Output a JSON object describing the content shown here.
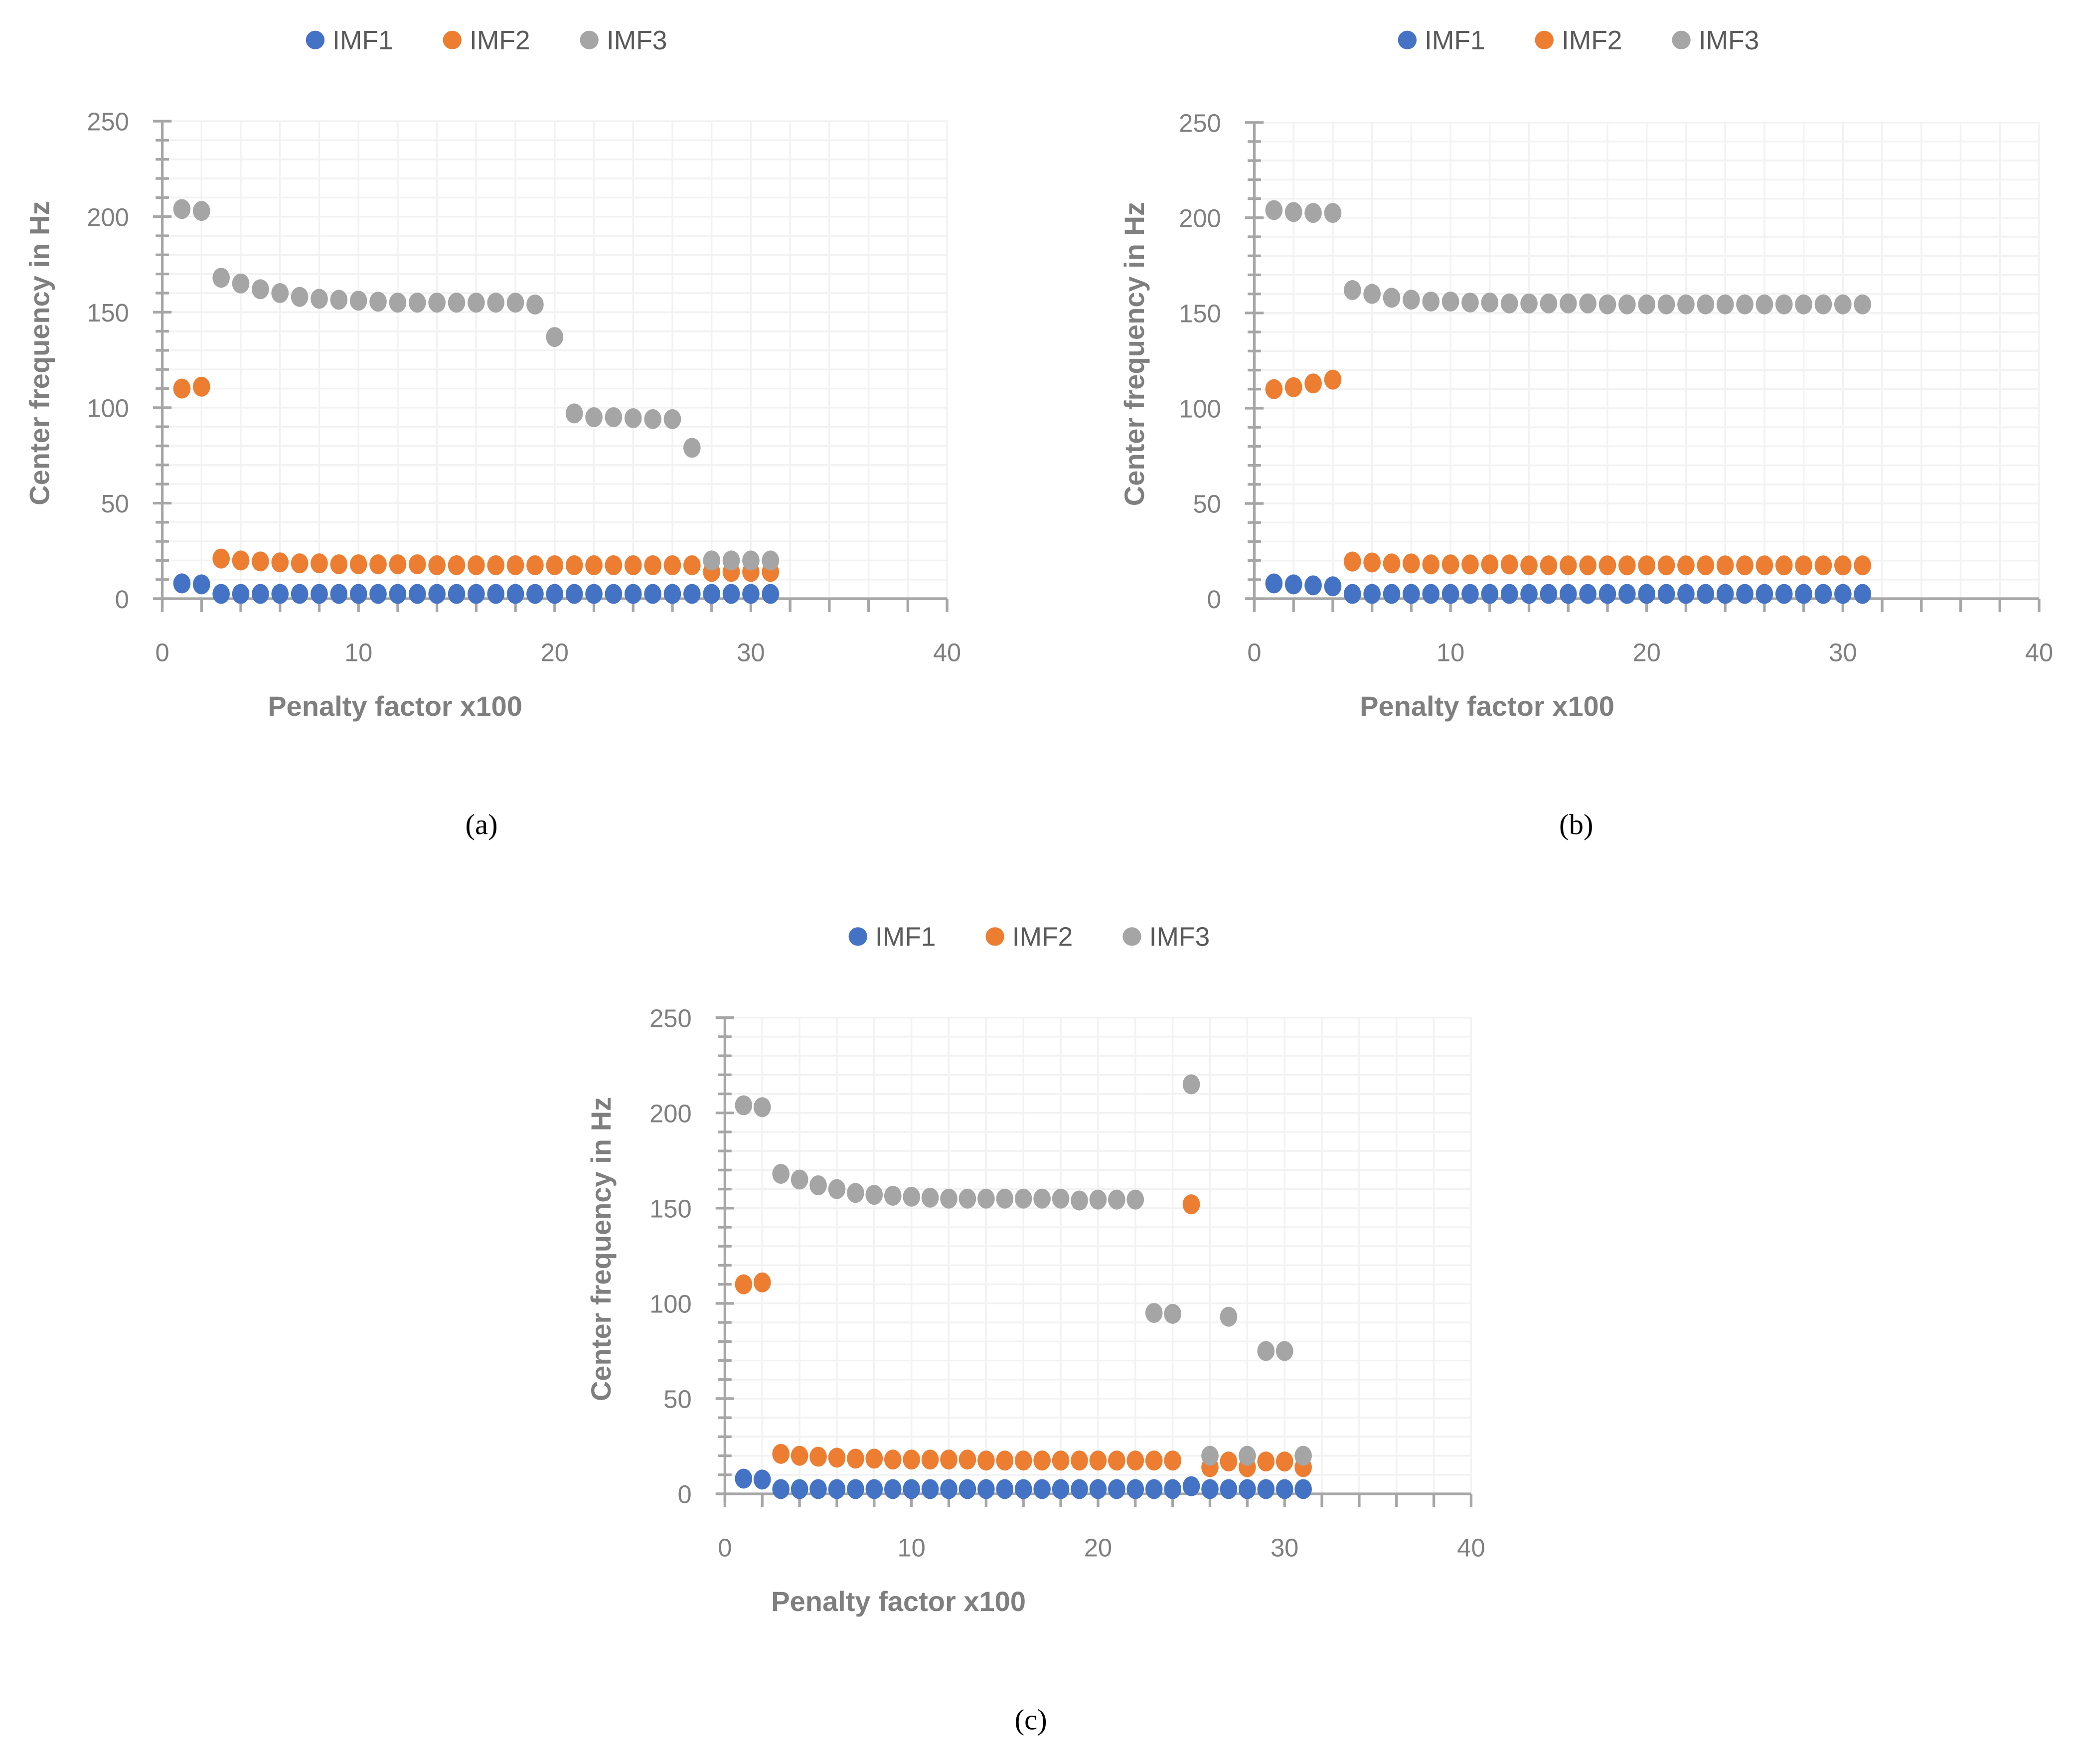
{
  "colors": {
    "IMF1": "#4472C4",
    "IMF2": "#ED7D31",
    "IMF3": "#A5A5A5",
    "grid": "#F2F2F2",
    "axis": "#A6A6A6"
  },
  "chart_data": [
    {
      "type": "scatter",
      "panel_label": "(a)",
      "xlabel": "Penalty factor   x100",
      "ylabel": "Center frequency in Hz",
      "xlim": [
        0,
        40
      ],
      "ylim": [
        0,
        250
      ],
      "xticks": [
        0,
        10,
        20,
        30,
        40
      ],
      "yticks": [
        0,
        50,
        100,
        150,
        200,
        250
      ],
      "grid": true,
      "legend": "top",
      "x": [
        1,
        2,
        3,
        4,
        5,
        6,
        7,
        8,
        9,
        10,
        11,
        12,
        13,
        14,
        15,
        16,
        17,
        18,
        19,
        20,
        21,
        22,
        23,
        24,
        25,
        26,
        27,
        28,
        29,
        30,
        31
      ],
      "series": [
        {
          "name": "IMF1",
          "values": [
            8,
            7.5,
            2.5,
            2.5,
            2.5,
            2.5,
            2.5,
            2.5,
            2.5,
            2.5,
            2.5,
            2.5,
            2.5,
            2.5,
            2.5,
            2.5,
            2.5,
            2.5,
            2.5,
            2.5,
            2.5,
            2.5,
            2.5,
            2.5,
            2.5,
            2.5,
            2.5,
            2.5,
            2.5,
            2.5,
            2.5
          ]
        },
        {
          "name": "IMF2",
          "values": [
            110,
            111,
            21,
            20,
            19.5,
            19,
            18.5,
            18.5,
            18,
            18,
            18,
            18,
            18,
            17.5,
            17.5,
            17.5,
            17.5,
            17.5,
            17.5,
            17.5,
            17.5,
            17.5,
            17.5,
            17.5,
            17.5,
            17.5,
            17.5,
            14,
            14,
            14,
            14
          ]
        },
        {
          "name": "IMF3",
          "values": [
            204,
            203,
            168,
            165,
            162,
            160,
            158,
            157,
            156.5,
            156,
            155.5,
            155,
            155,
            155,
            155,
            155,
            155,
            155,
            154,
            137,
            97,
            95,
            95,
            94.5,
            94,
            94,
            79,
            20,
            20,
            20,
            20
          ]
        }
      ]
    },
    {
      "type": "scatter",
      "panel_label": "(b)",
      "xlabel": "Penalty factor   x100",
      "ylabel": "Center frequency in Hz",
      "xlim": [
        0,
        40
      ],
      "ylim": [
        0,
        250
      ],
      "xticks": [
        0,
        10,
        20,
        30,
        40
      ],
      "yticks": [
        0,
        50,
        100,
        150,
        200,
        250
      ],
      "grid": true,
      "legend": "top",
      "x": [
        1,
        2,
        3,
        4,
        5,
        6,
        7,
        8,
        9,
        10,
        11,
        12,
        13,
        14,
        15,
        16,
        17,
        18,
        19,
        20,
        21,
        22,
        23,
        24,
        25,
        26,
        27,
        28,
        29,
        30,
        31
      ],
      "series": [
        {
          "name": "IMF1",
          "values": [
            8,
            7.5,
            7,
            6.5,
            2.5,
            2.5,
            2.5,
            2.5,
            2.5,
            2.5,
            2.5,
            2.5,
            2.5,
            2.5,
            2.5,
            2.5,
            2.5,
            2.5,
            2.5,
            2.5,
            2.5,
            2.5,
            2.5,
            2.5,
            2.5,
            2.5,
            2.5,
            2.5,
            2.5,
            2.5,
            2.5
          ]
        },
        {
          "name": "IMF2",
          "values": [
            110,
            111,
            113,
            115,
            19.5,
            19,
            18.5,
            18.5,
            18,
            18,
            18,
            18,
            18,
            17.5,
            17.5,
            17.5,
            17.5,
            17.5,
            17.5,
            17.5,
            17.5,
            17.5,
            17.5,
            17.5,
            17.5,
            17.5,
            17.5,
            17.5,
            17.5,
            17.5,
            17.5
          ]
        },
        {
          "name": "IMF3",
          "values": [
            204,
            203,
            202.5,
            202.5,
            162,
            160,
            158,
            157,
            156,
            156,
            155.5,
            155.5,
            155,
            155,
            155,
            155,
            155,
            154.5,
            154.5,
            154.5,
            154.5,
            154.5,
            154.5,
            154.5,
            154.5,
            154.5,
            154.5,
            154.5,
            154.5,
            154.5,
            154.5
          ]
        }
      ]
    },
    {
      "type": "scatter",
      "panel_label": "(c)",
      "xlabel": "Penalty factor   x100",
      "ylabel": "Center frequency in Hz",
      "xlim": [
        0,
        40
      ],
      "ylim": [
        0,
        250
      ],
      "xticks": [
        0,
        10,
        20,
        30,
        40
      ],
      "yticks": [
        0,
        50,
        100,
        150,
        200,
        250
      ],
      "grid": true,
      "legend": "top",
      "x": [
        1,
        2,
        3,
        4,
        5,
        6,
        7,
        8,
        9,
        10,
        11,
        12,
        13,
        14,
        15,
        16,
        17,
        18,
        19,
        20,
        21,
        22,
        23,
        24,
        25,
        26,
        27,
        28,
        29,
        30,
        31
      ],
      "series": [
        {
          "name": "IMF1",
          "values": [
            8,
            7.5,
            2.5,
            2.5,
            2.5,
            2.5,
            2.5,
            2.5,
            2.5,
            2.5,
            2.5,
            2.5,
            2.5,
            2.5,
            2.5,
            2.5,
            2.5,
            2.5,
            2.5,
            2.5,
            2.5,
            2.5,
            2.5,
            2.5,
            4,
            2.5,
            2.5,
            2.5,
            2.5,
            2.5,
            2.5
          ]
        },
        {
          "name": "IMF2",
          "values": [
            110,
            111,
            21,
            20,
            19.5,
            19,
            18.5,
            18.5,
            18,
            18,
            18,
            18,
            18,
            17.5,
            17.5,
            17.5,
            17.5,
            17.5,
            17.5,
            17.5,
            17.5,
            17.5,
            17.5,
            17.5,
            152,
            14,
            17,
            14,
            17,
            17,
            14
          ]
        },
        {
          "name": "IMF3",
          "values": [
            204,
            203,
            168,
            165,
            162,
            160,
            158,
            157,
            156.5,
            156,
            155.5,
            155,
            155,
            155,
            155,
            155,
            155,
            155,
            154,
            154.5,
            154.5,
            154.5,
            95,
            94.5,
            215,
            20,
            93,
            20,
            75,
            75,
            20
          ]
        }
      ]
    }
  ]
}
